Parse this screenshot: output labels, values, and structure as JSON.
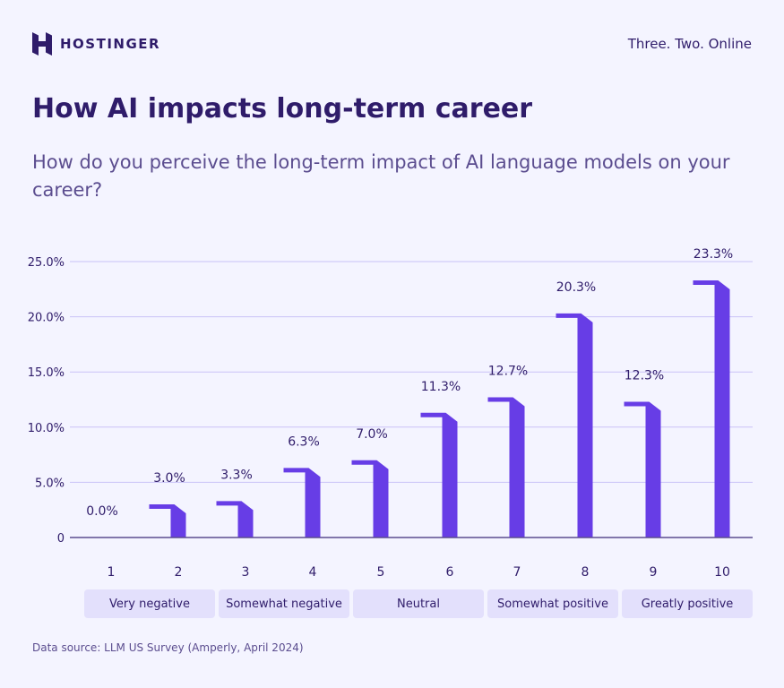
{
  "header": {
    "brand": "HOSTINGER",
    "tagline": "Three. Two. Online"
  },
  "title": "How AI impacts long-term career",
  "subtitle": "How do you perceive the long-term impact of AI language models on your career?",
  "source": "Data source: LLM US Survey (Amperly, April 2024)",
  "chart_data": {
    "type": "bar",
    "categories": [
      "1",
      "2",
      "3",
      "4",
      "5",
      "6",
      "7",
      "8",
      "9",
      "10"
    ],
    "values": [
      0.0,
      3.0,
      3.3,
      6.3,
      7.0,
      11.3,
      12.7,
      20.3,
      12.3,
      23.3
    ],
    "data_labels": [
      "0.0%",
      "3.0%",
      "3.3%",
      "6.3%",
      "7.0%",
      "11.3%",
      "12.7%",
      "20.3%",
      "12.3%",
      "23.3%"
    ],
    "yticks": [
      "0",
      "5.0%",
      "10.0%",
      "15.0%",
      "20.0%",
      "25.0%"
    ],
    "ylim": [
      0,
      25
    ],
    "grid": true,
    "group_labels": [
      "Very negative",
      "Somewhat negative",
      "Neutral",
      "Somewhat positive",
      "Greatly positive"
    ],
    "bar_color": "#673de6",
    "grid_color": "#c9c2f7"
  }
}
